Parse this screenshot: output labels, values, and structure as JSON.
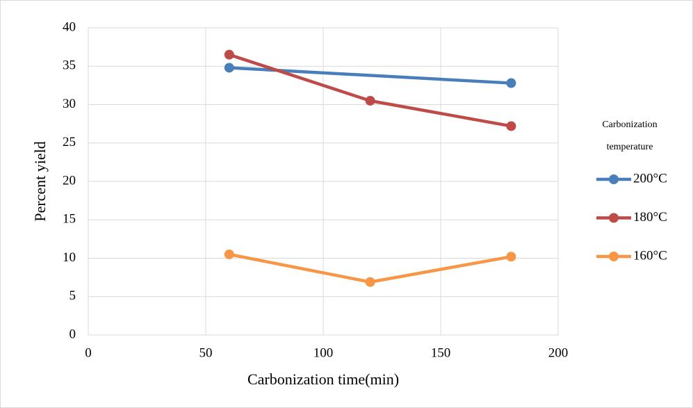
{
  "chart_data": {
    "type": "line",
    "xlabel": "Carbonization time(min)",
    "ylabel": "Percent yield",
    "legend_title": [
      "Carbonization",
      "temperature"
    ],
    "legend": "right",
    "grid": true,
    "xlim": [
      0,
      200
    ],
    "xticks": [
      0,
      50,
      100,
      150,
      200
    ],
    "ylim": [
      0,
      40
    ],
    "yticks": [
      0,
      5,
      10,
      15,
      20,
      25,
      30,
      35,
      40
    ],
    "series": [
      {
        "name": "200°C",
        "color": "#4a7ebb",
        "x": [
          60,
          180
        ],
        "values": [
          34.8,
          32.8
        ]
      },
      {
        "name": "180°C",
        "color": "#be4b48",
        "x": [
          60,
          120,
          180
        ],
        "values": [
          36.5,
          30.5,
          27.2
        ]
      },
      {
        "name": "160°C",
        "color": "#f79646",
        "x": [
          60,
          120,
          180
        ],
        "values": [
          10.5,
          6.9,
          10.2
        ]
      }
    ]
  }
}
